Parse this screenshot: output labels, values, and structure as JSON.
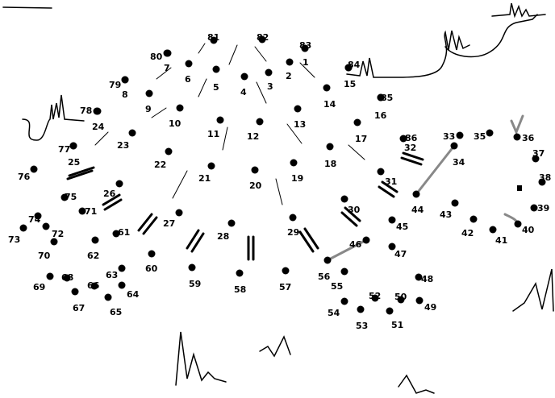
{
  "puzzle": {
    "dots": [
      {
        "n": "1"
      },
      {
        "n": "2"
      },
      {
        "n": "3"
      },
      {
        "n": "4"
      },
      {
        "n": "5"
      },
      {
        "n": "6"
      },
      {
        "n": "7"
      },
      {
        "n": "8"
      },
      {
        "n": "9"
      },
      {
        "n": "10"
      },
      {
        "n": "11"
      },
      {
        "n": "12"
      },
      {
        "n": "13"
      },
      {
        "n": "14"
      },
      {
        "n": "15"
      },
      {
        "n": "16"
      },
      {
        "n": "17"
      },
      {
        "n": "18"
      },
      {
        "n": "19"
      },
      {
        "n": "20"
      },
      {
        "n": "21"
      },
      {
        "n": "22"
      },
      {
        "n": "23"
      },
      {
        "n": "24"
      },
      {
        "n": "25"
      },
      {
        "n": "26"
      },
      {
        "n": "27"
      },
      {
        "n": "28"
      },
      {
        "n": "29"
      },
      {
        "n": "30"
      },
      {
        "n": "31"
      },
      {
        "n": "33"
      },
      {
        "n": "34"
      },
      {
        "n": "35"
      },
      {
        "n": "36"
      },
      {
        "n": "37"
      },
      {
        "n": "38"
      },
      {
        "n": "39"
      },
      {
        "n": "40"
      },
      {
        "n": "41"
      },
      {
        "n": "42"
      },
      {
        "n": "43"
      },
      {
        "n": "44"
      },
      {
        "n": "45"
      },
      {
        "n": "46"
      },
      {
        "n": "47"
      },
      {
        "n": "48"
      },
      {
        "n": "49"
      },
      {
        "n": "50"
      },
      {
        "n": "51"
      },
      {
        "n": "52"
      },
      {
        "n": "53"
      },
      {
        "n": "54"
      },
      {
        "n": "55"
      },
      {
        "n": "56"
      },
      {
        "n": "57"
      },
      {
        "n": "58"
      },
      {
        "n": "59"
      },
      {
        "n": "60"
      },
      {
        "n": "61"
      },
      {
        "n": "62"
      },
      {
        "n": "63"
      },
      {
        "n": "64"
      },
      {
        "n": "65"
      },
      {
        "n": "66"
      },
      {
        "n": "67"
      },
      {
        "n": "68"
      },
      {
        "n": "69"
      },
      {
        "n": "70"
      },
      {
        "n": "71"
      },
      {
        "n": "72"
      },
      {
        "n": "73"
      },
      {
        "n": "74"
      },
      {
        "n": "75"
      },
      {
        "n": "76"
      },
      {
        "n": "77"
      },
      {
        "n": "78"
      },
      {
        "n": "79"
      },
      {
        "n": "80"
      },
      {
        "n": "81"
      },
      {
        "n": "82"
      },
      {
        "n": "83"
      },
      {
        "n": "84"
      },
      {
        "n": "85"
      },
      {
        "n": "86"
      }
    ],
    "extra_labels": [
      "32"
    ],
    "colors": {
      "ink": "#000000",
      "guide": "#888888",
      "highlight": "#cc33cc"
    }
  }
}
